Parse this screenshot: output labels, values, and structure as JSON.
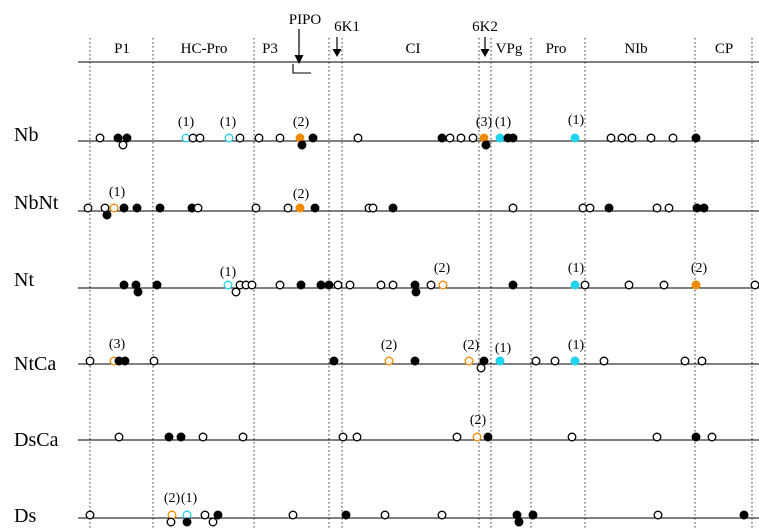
{
  "regions": [
    "P1",
    "HC-Pro",
    "P3",
    "CI",
    "VPg",
    "Pro",
    "NIb",
    "CP"
  ],
  "markers": [
    {
      "label": "PIPO"
    },
    {
      "label": "6K1"
    },
    {
      "label": "6K2"
    }
  ],
  "rows": [
    {
      "name": "Nb",
      "annotations": [
        "(1)",
        "(1)",
        "(2)",
        "(3)",
        "(1)",
        "(1)"
      ]
    },
    {
      "name": "NbNt",
      "annotations": [
        "(1)",
        "(2)"
      ]
    },
    {
      "name": "Nt",
      "annotations": [
        "(1)",
        "(2)",
        "(1)",
        "(2)"
      ]
    },
    {
      "name": "NtCa",
      "annotations": [
        "(3)",
        "(2)",
        "(2)",
        "(1)",
        "(1)"
      ]
    },
    {
      "name": "DsCa",
      "annotations": [
        "(2)"
      ]
    },
    {
      "name": "Ds",
      "annotations": [
        "(2)",
        "(1)"
      ]
    }
  ],
  "colors": {
    "open": "#000000",
    "filled": "#000000",
    "cyan": "#22d3ee",
    "orange": "#f08c00"
  }
}
